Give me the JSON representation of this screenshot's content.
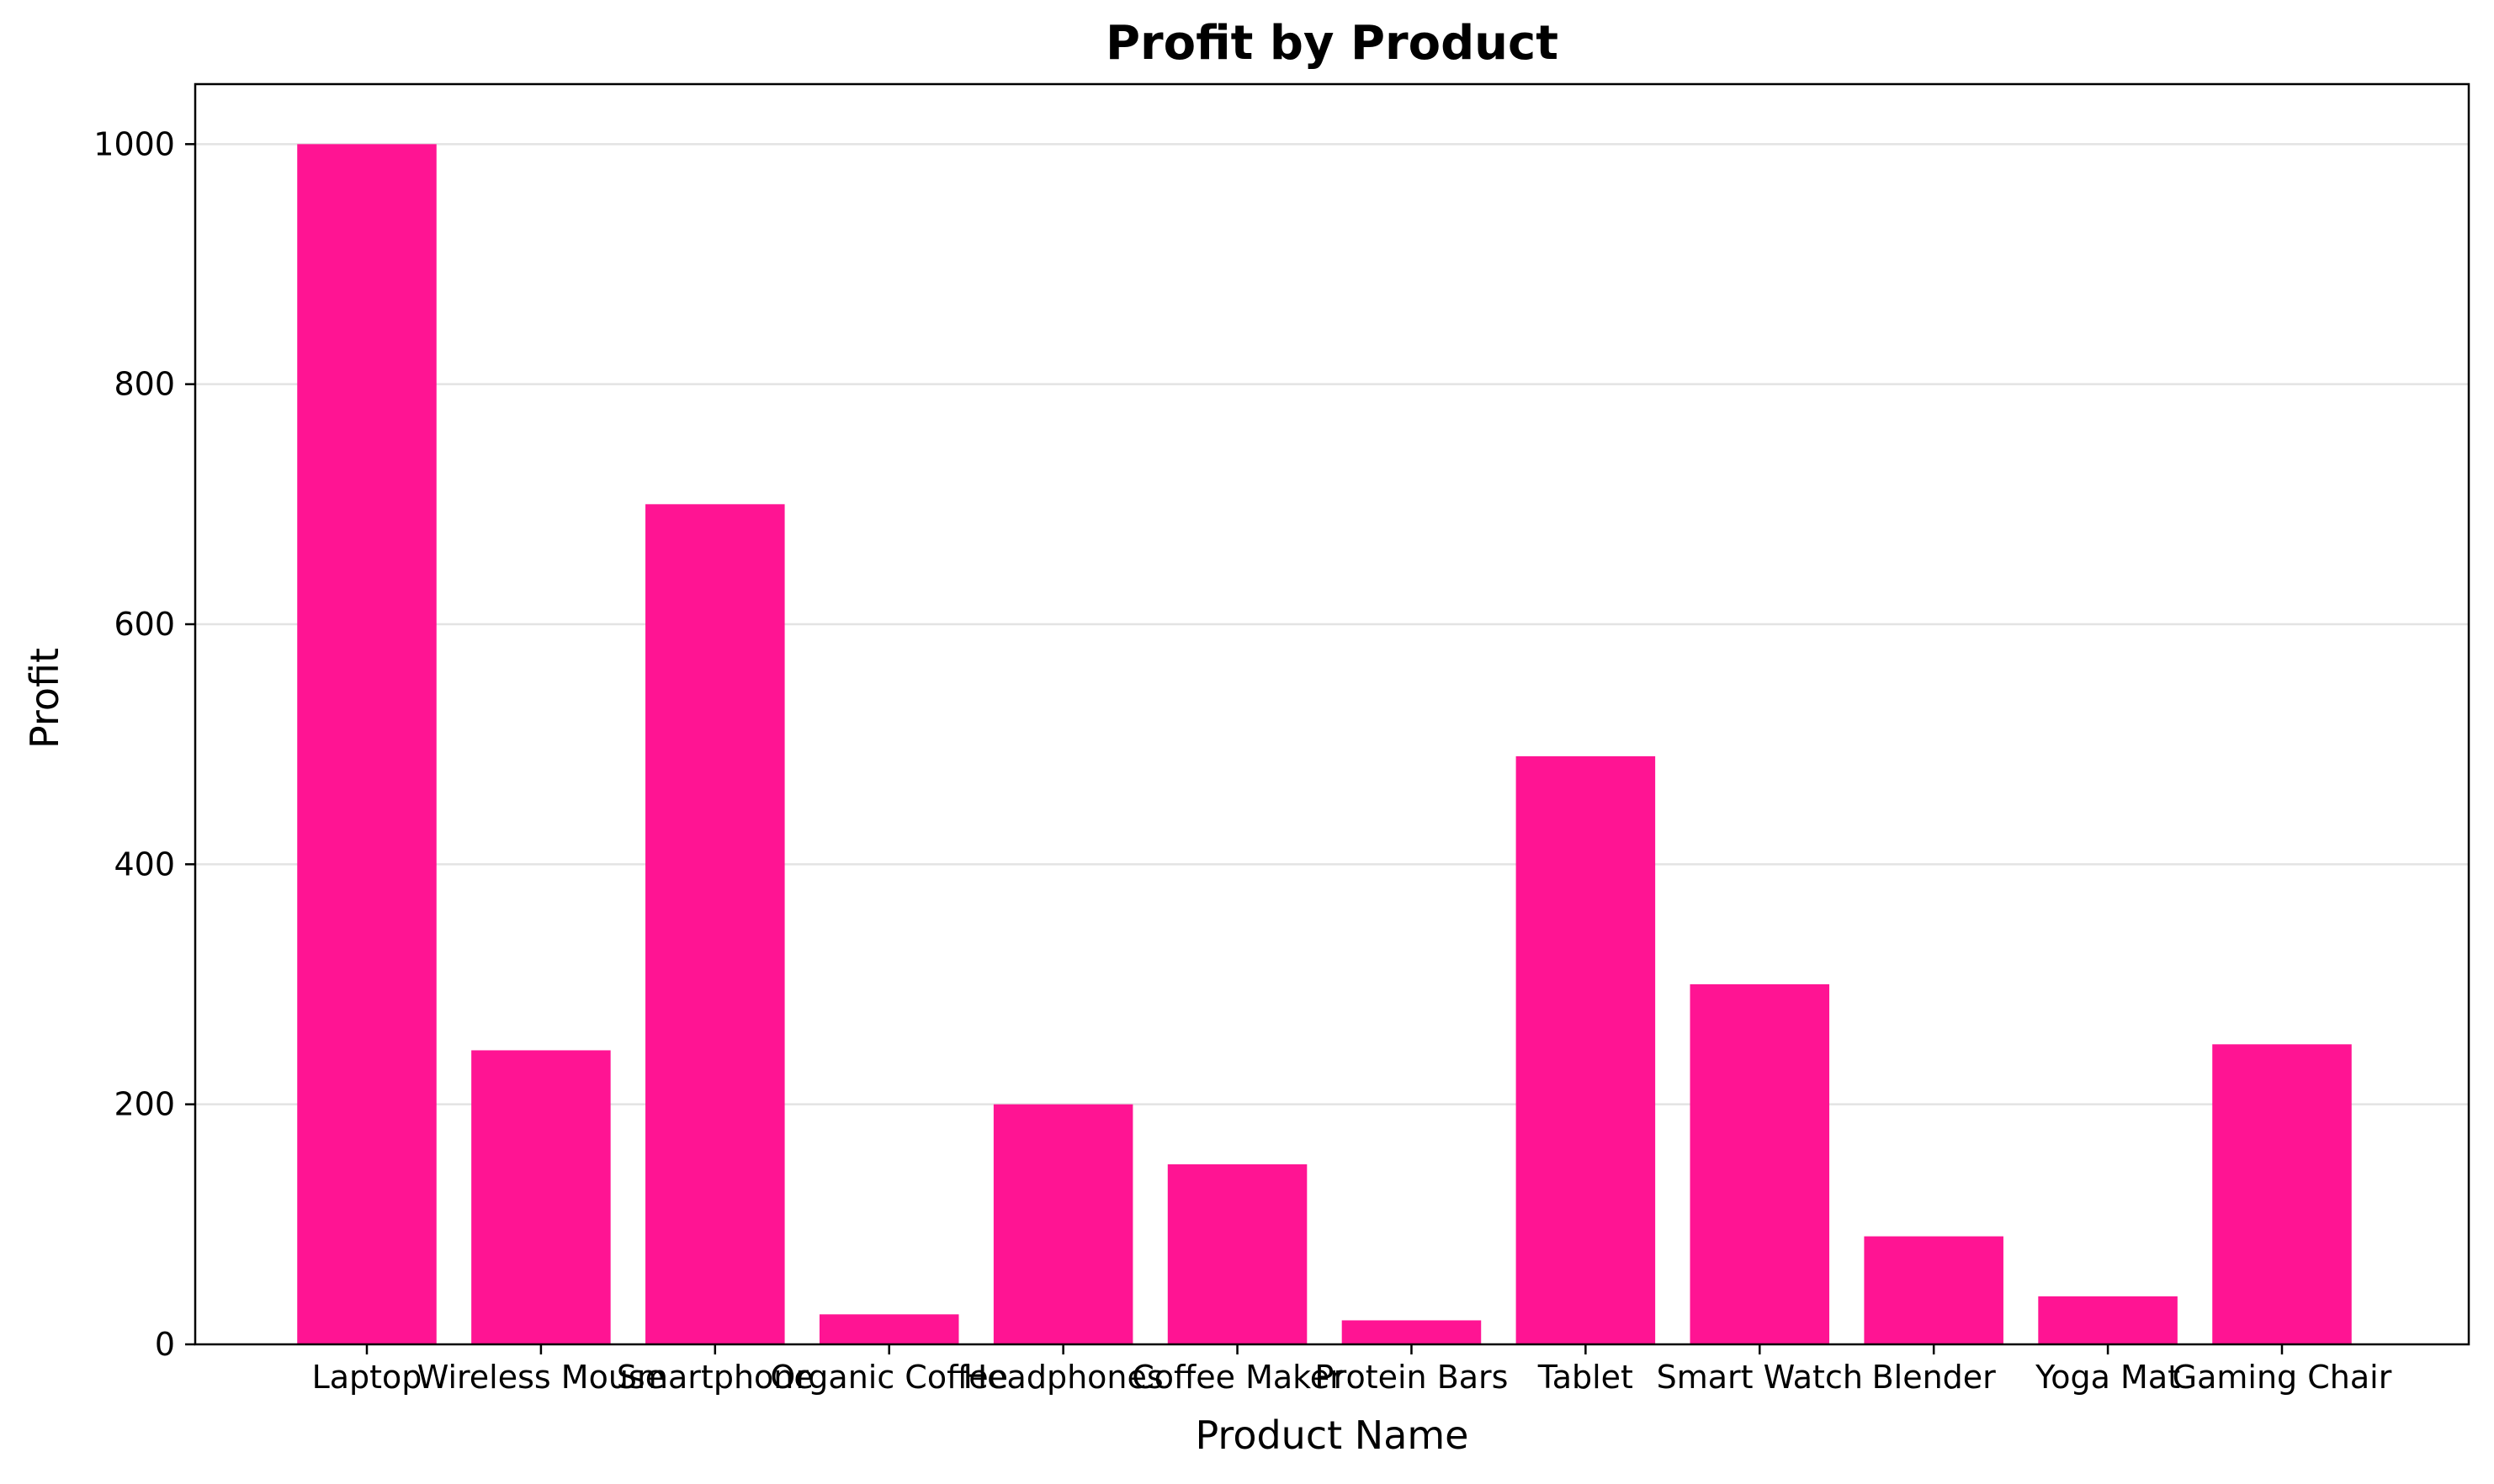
{
  "chart_data": {
    "type": "bar",
    "title": "Profit by Product",
    "xlabel": "Product Name",
    "ylabel": "Profit",
    "categories": [
      "Laptop",
      "Wireless Mouse",
      "Smartphone",
      "Organic Coffee",
      "Headphones",
      "Coffee Maker",
      "Protein Bars",
      "Tablet",
      "Smart Watch",
      "Blender",
      "Yoga Mat",
      "Gaming Chair"
    ],
    "values": [
      1000,
      245,
      700,
      25,
      200,
      150,
      20,
      490,
      300,
      90,
      40,
      250
    ],
    "ylim": [
      0,
      1050
    ],
    "yticks": [
      0,
      200,
      400,
      600,
      800,
      1000
    ],
    "grid": "horizontal",
    "colors": {
      "bar": "#ff1493",
      "grid": "#e3e3e3",
      "axis": "#000000"
    }
  }
}
